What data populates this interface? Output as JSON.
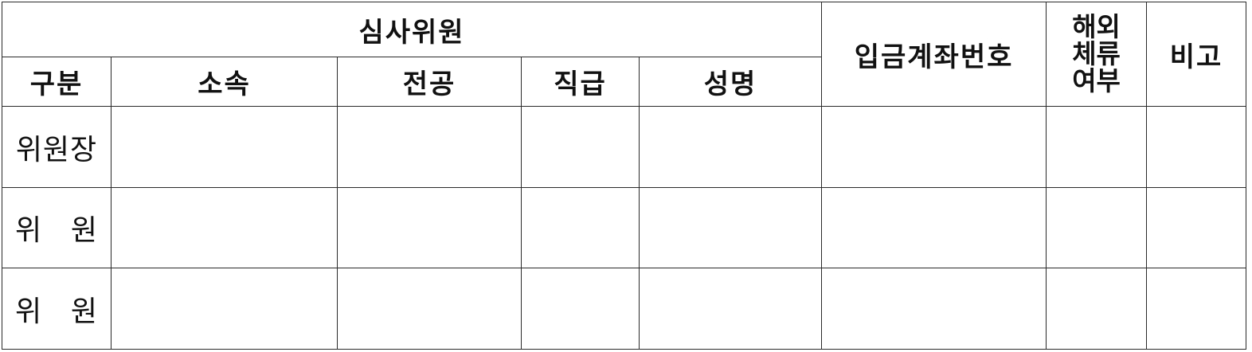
{
  "header": {
    "group_title": "심사위원",
    "account_number": "입금계좌번호",
    "overseas_stay": [
      "해외",
      "체류",
      "여부"
    ],
    "remarks": "비고",
    "sub_columns": {
      "category": "구분",
      "affiliation": "소속",
      "major": "전공",
      "position": "직급",
      "name": "성명"
    }
  },
  "rows": [
    {
      "role": "위원장",
      "role_parts": [
        "위원장"
      ]
    },
    {
      "role": "위 원",
      "role_parts": [
        "위",
        "원"
      ]
    },
    {
      "role": "위 원",
      "role_parts": [
        "위",
        "원"
      ]
    }
  ]
}
